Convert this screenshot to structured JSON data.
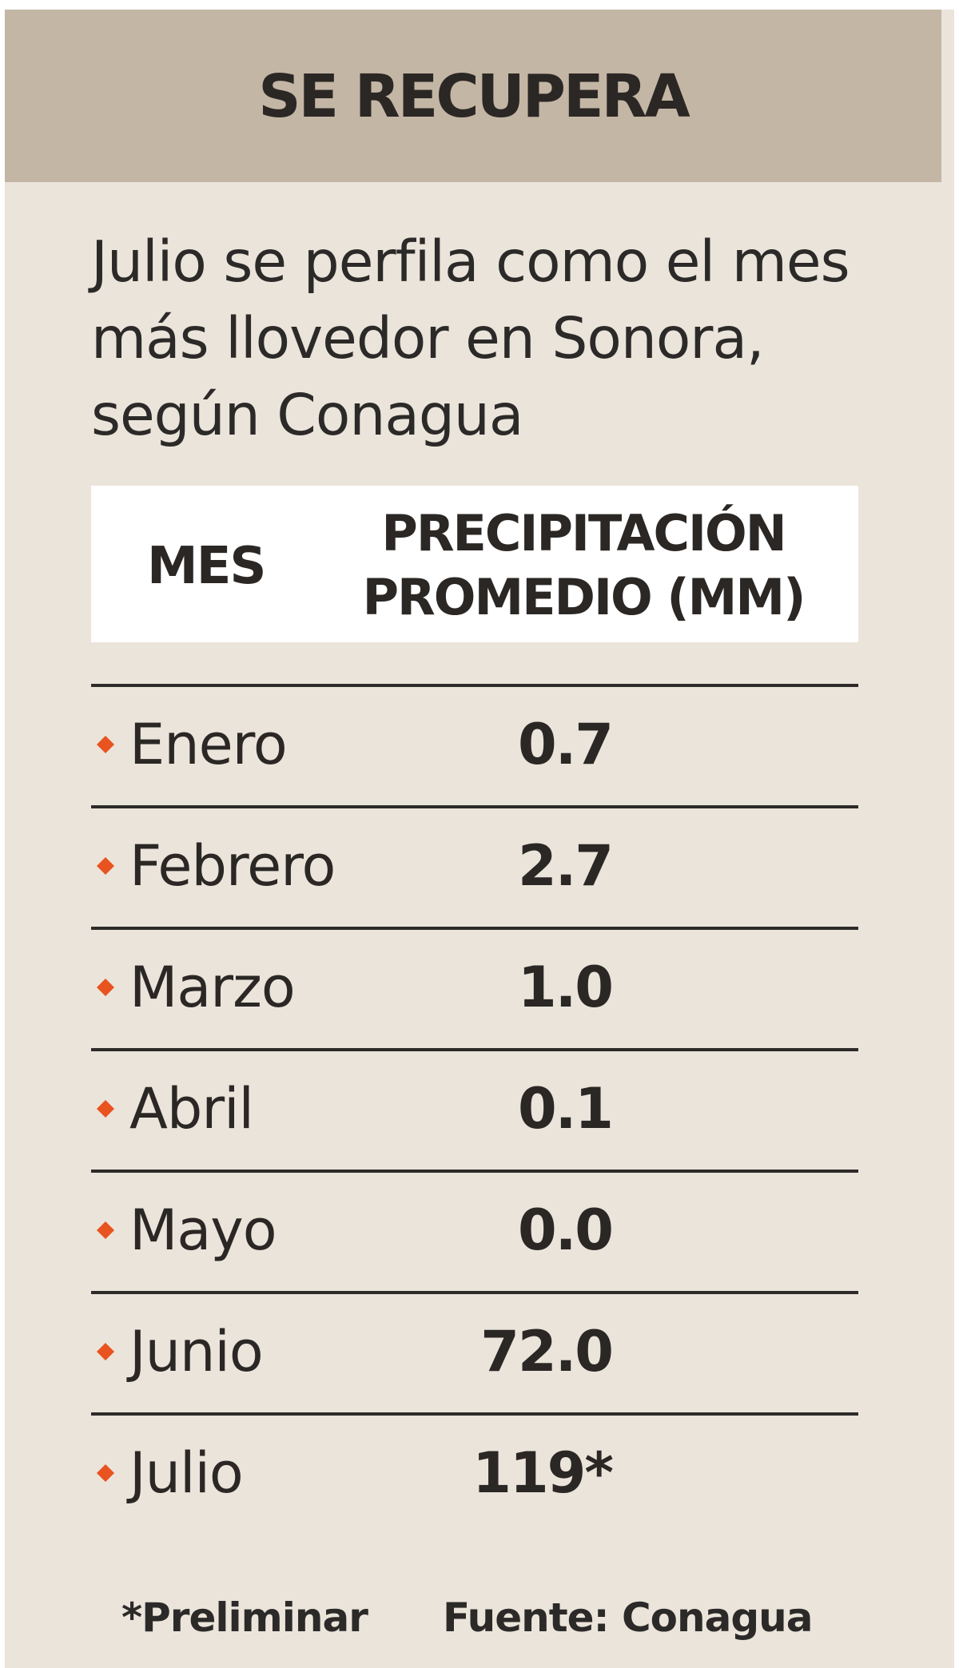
{
  "header": {
    "title": "SE RECUPERA"
  },
  "subtitle": "Julio se perfila como el mes más llovedor en Sonora, según Conagua",
  "colors": {
    "accent": "#e8531f",
    "header_bg": "#c3b6a4",
    "card_bg": "#ebe4db"
  },
  "chart_data": {
    "type": "table",
    "columns": [
      "MES",
      "PRECIPITACIÓN PROMEDIO (MM)"
    ],
    "column_header_lines": [
      "PRECIPITACIÓN",
      "PROMEDIO (MM)"
    ],
    "rows": [
      {
        "mes": "Enero",
        "value_label": "0.7",
        "value": 0.7
      },
      {
        "mes": "Febrero",
        "value_label": "2.7",
        "value": 2.7
      },
      {
        "mes": "Marzo",
        "value_label": "1.0",
        "value": 1.0
      },
      {
        "mes": "Abril",
        "value_label": "0.1",
        "value": 0.1
      },
      {
        "mes": "Mayo",
        "value_label": "0.0",
        "value": 0.0
      },
      {
        "mes": "Junio",
        "value_label": "72.0",
        "value": 72.0
      },
      {
        "mes": "Julio",
        "value_label": "119*",
        "value": 119
      }
    ],
    "unit": "mm",
    "row_marker_icon": "diamond-bullet-icon"
  },
  "footer": {
    "note": "*Preliminar",
    "source": "Fuente: Conagua"
  }
}
